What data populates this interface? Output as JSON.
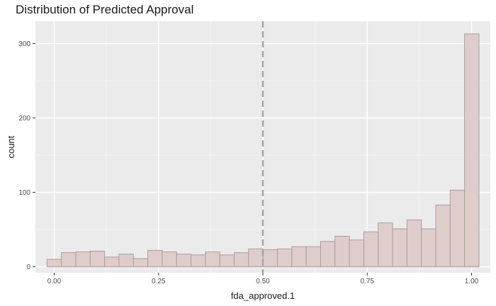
{
  "chart_data": {
    "type": "bar",
    "title": "Distribution of Predicted Approval",
    "xlabel": "fda_approved.1",
    "ylabel": "count",
    "xlim": [
      -0.045,
      1.045
    ],
    "ylim": [
      -8,
      330
    ],
    "x_ticks": [
      0,
      0.25,
      0.5,
      0.75,
      1
    ],
    "x_tick_labels": [
      "0.00",
      "0.25",
      "0.50",
      "0.75",
      "1.00"
    ],
    "y_ticks": [
      0,
      100,
      200,
      300
    ],
    "y_tick_labels": [
      "0",
      "100",
      "200",
      "300"
    ],
    "bin_width": 0.0345,
    "bin_start": -0.0172,
    "values": [
      10,
      19,
      20,
      21,
      13,
      17,
      11,
      22,
      20,
      17,
      16,
      20,
      16,
      19,
      24,
      23,
      24,
      27,
      27,
      34,
      41,
      36,
      47,
      59,
      51,
      63,
      51,
      83,
      103,
      313
    ],
    "vline": {
      "x": 0.5,
      "style": "dashed",
      "color": "#a6a6a6"
    },
    "bar_fill": "#dfcdcb",
    "bar_stroke": "#ab9e9b",
    "panel_background": "#ebebeb",
    "grid": true,
    "legend": "none"
  }
}
